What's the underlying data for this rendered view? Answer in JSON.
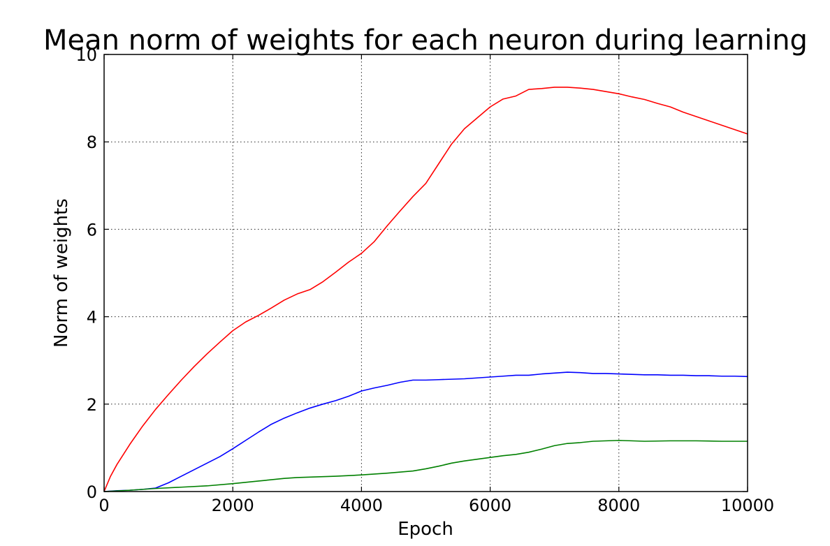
{
  "chart_data": {
    "type": "line",
    "title": "Mean norm of weights for each neuron during learning",
    "xlabel": "Epoch",
    "ylabel": "Norm of weights",
    "xlim": [
      0,
      10000
    ],
    "ylim": [
      0,
      10
    ],
    "x_ticks": [
      0,
      2000,
      4000,
      6000,
      8000,
      10000
    ],
    "x_tick_labels": [
      "0",
      "2000",
      "4000",
      "6000",
      "8000",
      "10000"
    ],
    "y_ticks": [
      0,
      2,
      4,
      6,
      8,
      10
    ],
    "y_tick_labels": [
      "0",
      "2",
      "4",
      "6",
      "8",
      "10"
    ],
    "grid": true,
    "series": [
      {
        "color": "#ff0000",
        "x": [
          0,
          100,
          200,
          400,
          600,
          800,
          1000,
          1200,
          1400,
          1600,
          1800,
          2000,
          2200,
          2400,
          2600,
          2800,
          3000,
          3200,
          3400,
          3600,
          3800,
          4000,
          4200,
          4400,
          4600,
          4800,
          5000,
          5200,
          5400,
          5600,
          5800,
          6000,
          6200,
          6400,
          6600,
          6800,
          7000,
          7200,
          7400,
          7600,
          7800,
          8000,
          8200,
          8400,
          8600,
          8800,
          9000,
          9200,
          9400,
          9600,
          9800,
          10000
        ],
        "values": [
          0.0,
          0.35,
          0.62,
          1.08,
          1.5,
          1.88,
          2.22,
          2.55,
          2.86,
          3.15,
          3.42,
          3.68,
          3.88,
          4.03,
          4.2,
          4.38,
          4.52,
          4.62,
          4.8,
          5.02,
          5.25,
          5.45,
          5.72,
          6.08,
          6.42,
          6.75,
          7.05,
          7.5,
          7.95,
          8.3,
          8.55,
          8.8,
          8.98,
          9.05,
          9.2,
          9.22,
          9.25,
          9.25,
          9.23,
          9.2,
          9.15,
          9.1,
          9.03,
          8.97,
          8.88,
          8.8,
          8.68,
          8.58,
          8.48,
          8.38,
          8.28,
          8.18
        ]
      },
      {
        "color": "#0000ff",
        "x": [
          0,
          200,
          400,
          600,
          800,
          1000,
          1200,
          1400,
          1600,
          1800,
          2000,
          2200,
          2400,
          2600,
          2800,
          3000,
          3200,
          3400,
          3600,
          3800,
          4000,
          4200,
          4400,
          4600,
          4800,
          5000,
          5200,
          5400,
          5600,
          5800,
          6000,
          6200,
          6400,
          6600,
          6800,
          7000,
          7200,
          7400,
          7600,
          7800,
          8000,
          8200,
          8400,
          8600,
          8800,
          9000,
          9200,
          9400,
          9600,
          9800,
          10000
        ],
        "values": [
          0.0,
          0.02,
          0.03,
          0.05,
          0.08,
          0.2,
          0.35,
          0.5,
          0.65,
          0.8,
          0.98,
          1.17,
          1.36,
          1.54,
          1.68,
          1.8,
          1.91,
          2.0,
          2.08,
          2.18,
          2.3,
          2.37,
          2.43,
          2.5,
          2.55,
          2.55,
          2.56,
          2.57,
          2.58,
          2.6,
          2.62,
          2.64,
          2.66,
          2.66,
          2.69,
          2.71,
          2.73,
          2.72,
          2.7,
          2.7,
          2.69,
          2.68,
          2.67,
          2.67,
          2.66,
          2.66,
          2.65,
          2.65,
          2.64,
          2.64,
          2.63
        ]
      },
      {
        "color": "#008000",
        "x": [
          0,
          400,
          800,
          1200,
          1600,
          2000,
          2400,
          2800,
          3000,
          3200,
          3600,
          4000,
          4400,
          4800,
          5000,
          5200,
          5400,
          5600,
          5800,
          6000,
          6200,
          6400,
          6600,
          6800,
          7000,
          7200,
          7400,
          7600,
          7800,
          8000,
          8200,
          8400,
          8800,
          9200,
          9600,
          10000
        ],
        "values": [
          0.0,
          0.03,
          0.07,
          0.1,
          0.13,
          0.18,
          0.24,
          0.3,
          0.32,
          0.33,
          0.35,
          0.38,
          0.42,
          0.47,
          0.52,
          0.58,
          0.65,
          0.7,
          0.74,
          0.78,
          0.82,
          0.85,
          0.9,
          0.97,
          1.05,
          1.1,
          1.12,
          1.15,
          1.16,
          1.17,
          1.16,
          1.15,
          1.16,
          1.16,
          1.15,
          1.15
        ]
      }
    ]
  }
}
